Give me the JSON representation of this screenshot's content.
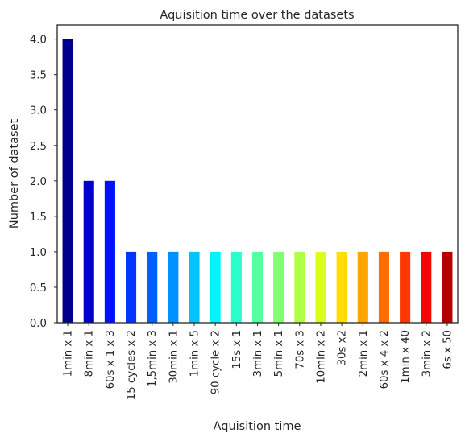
{
  "chart_data": {
    "type": "bar",
    "title": "Aquisition time over the datasets",
    "xlabel": "Aquisition time",
    "ylabel": "Number of dataset",
    "ylim": [
      0,
      4.2
    ],
    "yticks": [
      0.0,
      0.5,
      1.0,
      1.5,
      2.0,
      2.5,
      3.0,
      3.5,
      4.0
    ],
    "ytick_labels": [
      "0.0",
      "0.5",
      "1.0",
      "1.5",
      "2.0",
      "2.5",
      "3.0",
      "3.5",
      "4.0"
    ],
    "grid": false,
    "categories": [
      "1min x 1",
      "8min x 1",
      "60s x 1 x 3",
      "15 cycles x 2",
      "1,5min x 3",
      "30min x 1",
      "1min x 5",
      "90 cycle x 2",
      "15s x 1",
      "3min x 1",
      "5min x 1",
      "70s x 3",
      "10min x 2",
      "30s x2",
      "2min x 1",
      "60s x 4 x 2",
      "1min x  40",
      "3min x 2",
      "6s x 50"
    ],
    "values": [
      4,
      2,
      2,
      1,
      1,
      1,
      1,
      1,
      1,
      1,
      1,
      1,
      1,
      1,
      1,
      1,
      1,
      1,
      1
    ],
    "colors": [
      "#00008f",
      "#0000c8",
      "#0010ff",
      "#0034ff",
      "#0060ff",
      "#0090ff",
      "#00c4ff",
      "#00f4f8",
      "#2affcc",
      "#56ffa0",
      "#82ff74",
      "#aeff48",
      "#daff1c",
      "#ffde00",
      "#ffa400",
      "#ff6d00",
      "#ff3800",
      "#f20800",
      "#b40000"
    ]
  }
}
